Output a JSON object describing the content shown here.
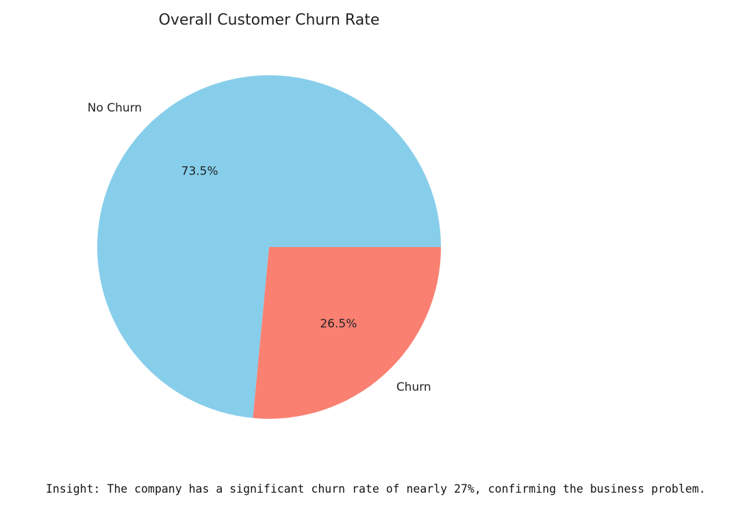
{
  "chart_data": {
    "type": "pie",
    "title": "Overall Customer Churn Rate",
    "slices": [
      {
        "label": "No Churn",
        "value": 73.5,
        "percent_label": "73.5%",
        "color": "#87ceeb"
      },
      {
        "label": "Churn",
        "value": 26.5,
        "percent_label": "26.5%",
        "color": "#fa8072"
      }
    ],
    "start_angle_deg": 0,
    "direction": "counterclockwise"
  },
  "insight": {
    "text": "Insight: The company has a significant churn rate of nearly 27%, confirming the business problem."
  }
}
